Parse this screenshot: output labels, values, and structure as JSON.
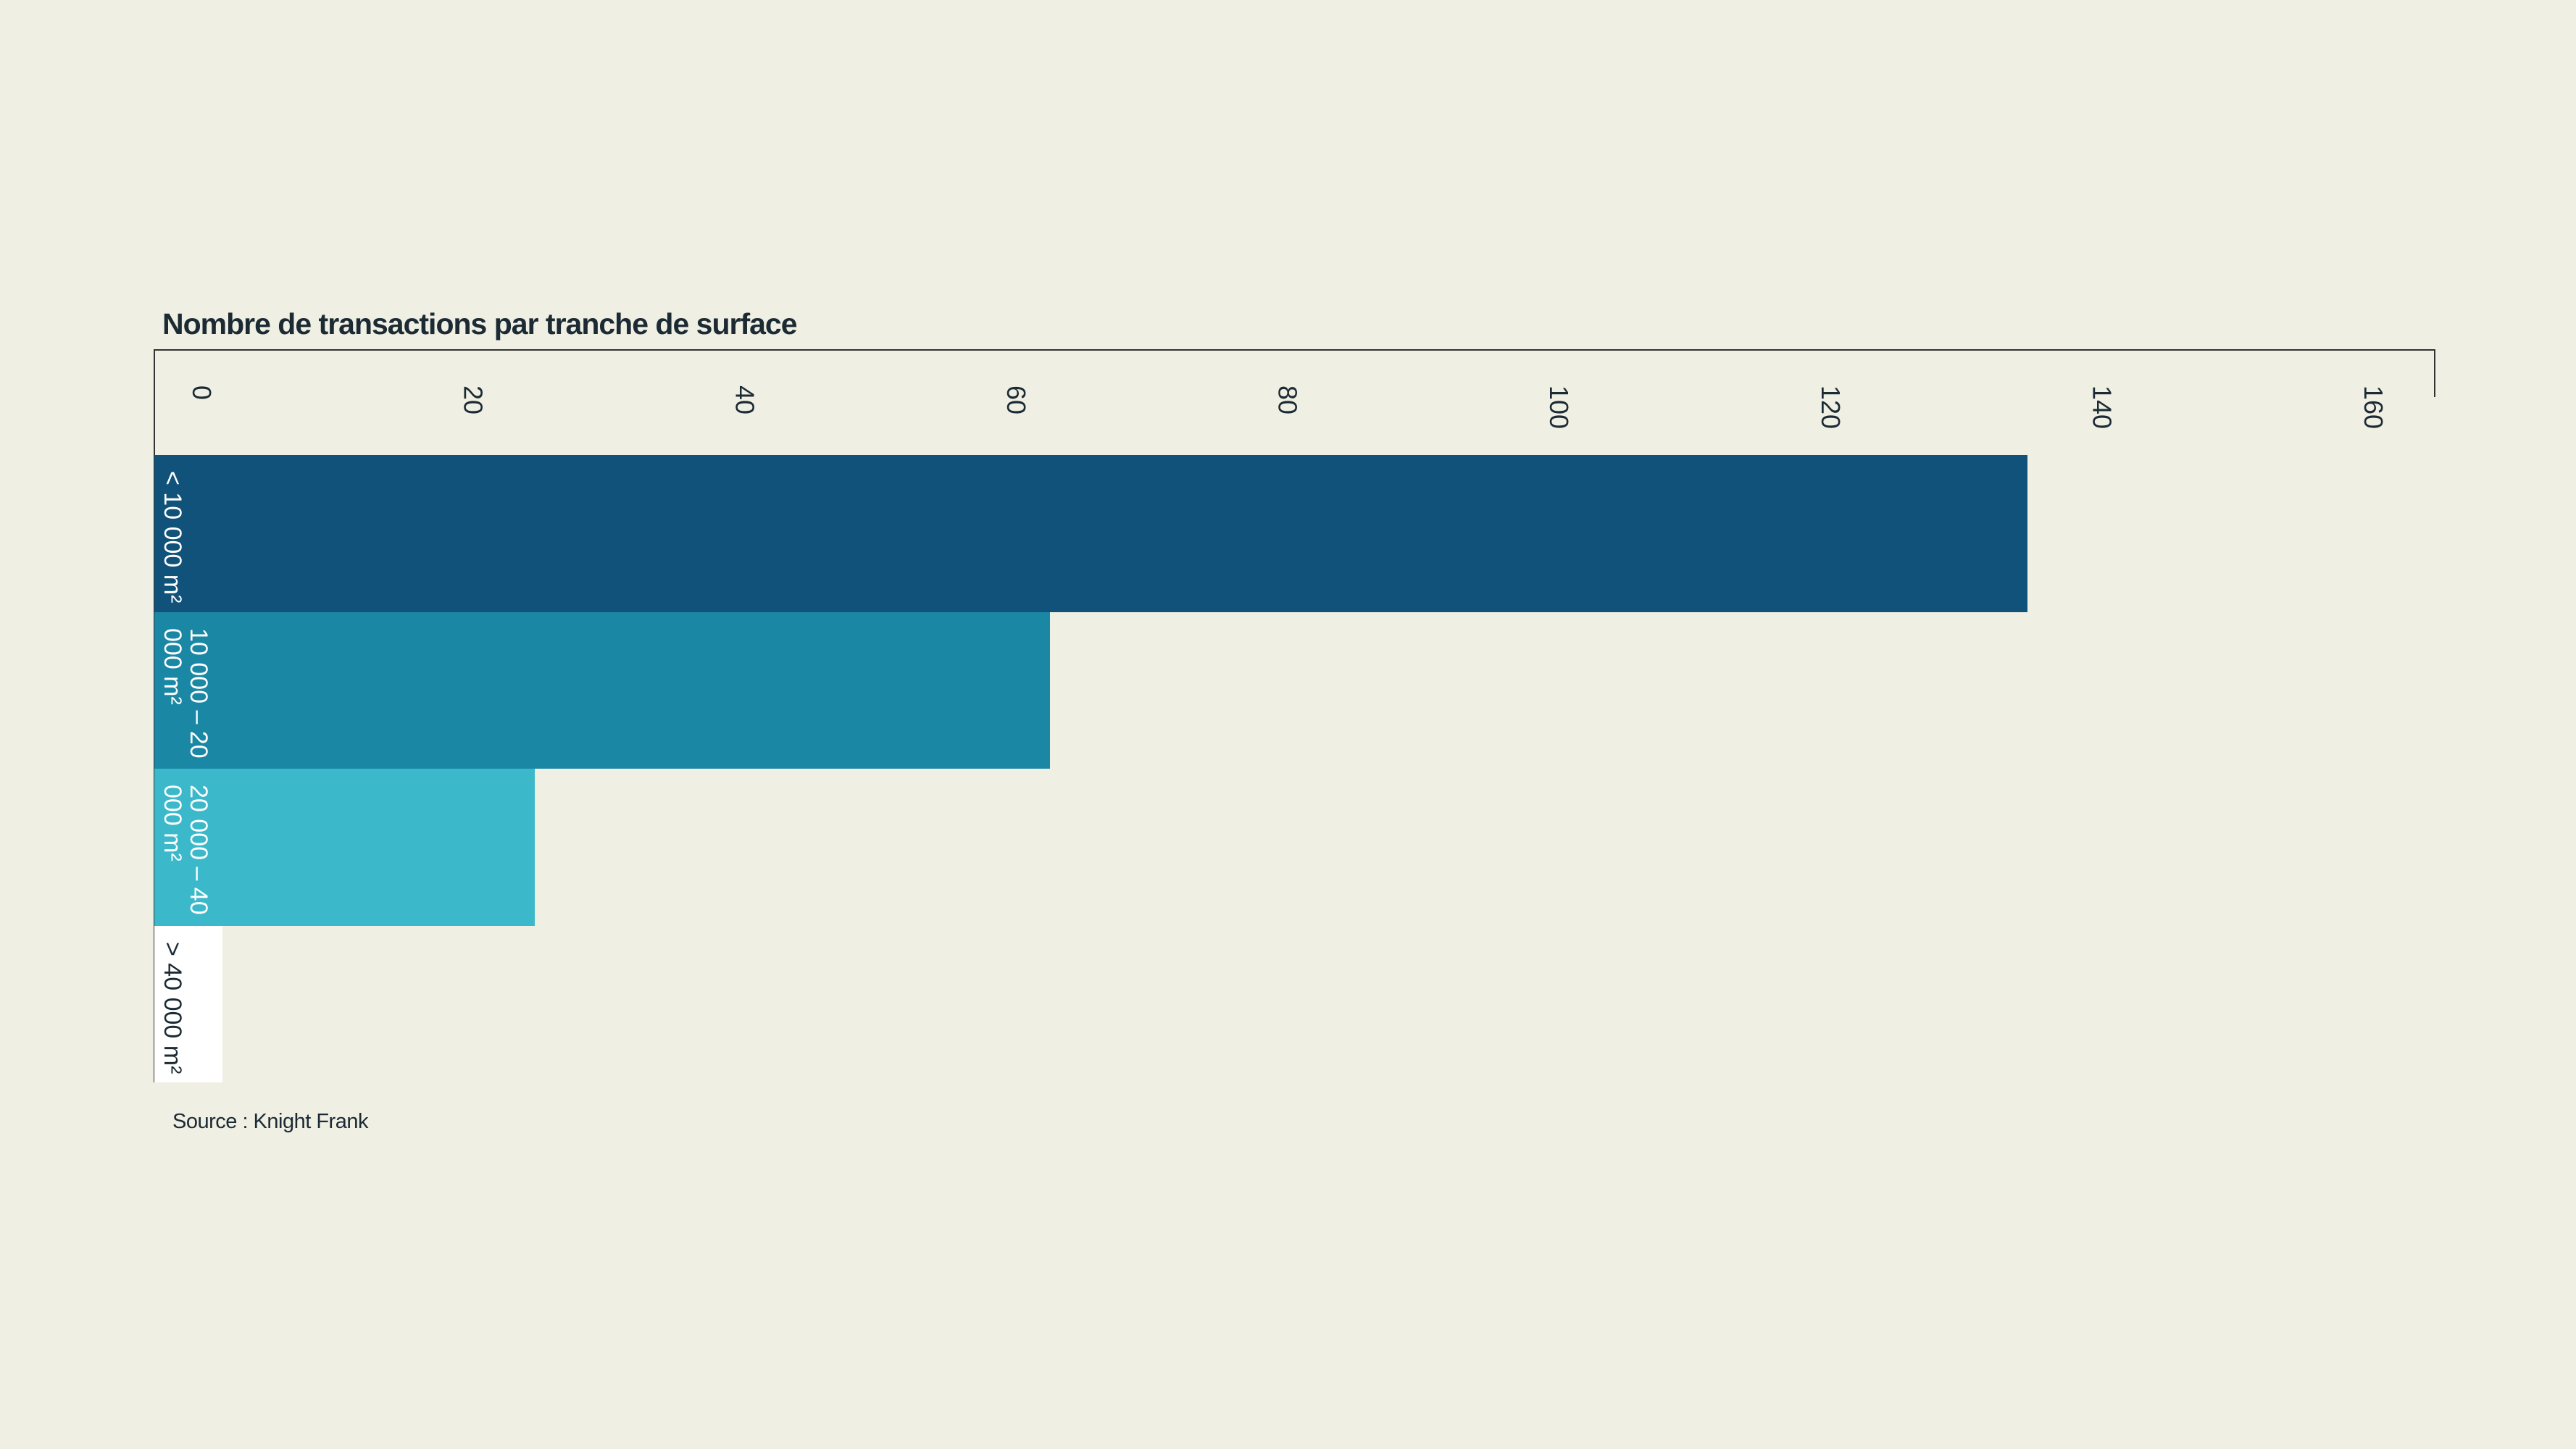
{
  "chart_data": {
    "type": "bar",
    "orientation": "horizontal",
    "title": "Nombre de transactions par tranche de surface",
    "categories": [
      "< 10 000 m²",
      "10 000 – 20 000 m²",
      "20 000 – 40 000 m²",
      "> 40 000 m²"
    ],
    "values": [
      138,
      66,
      28,
      5
    ],
    "colors": [
      "#10527a",
      "#1a87a5",
      "#3bb9ca",
      "#ffffff"
    ],
    "xlim": [
      0,
      168
    ],
    "xticks": [
      0,
      20,
      40,
      60,
      80,
      100,
      120,
      140,
      160
    ],
    "grid": false,
    "source": "Source : Knight Frank"
  }
}
